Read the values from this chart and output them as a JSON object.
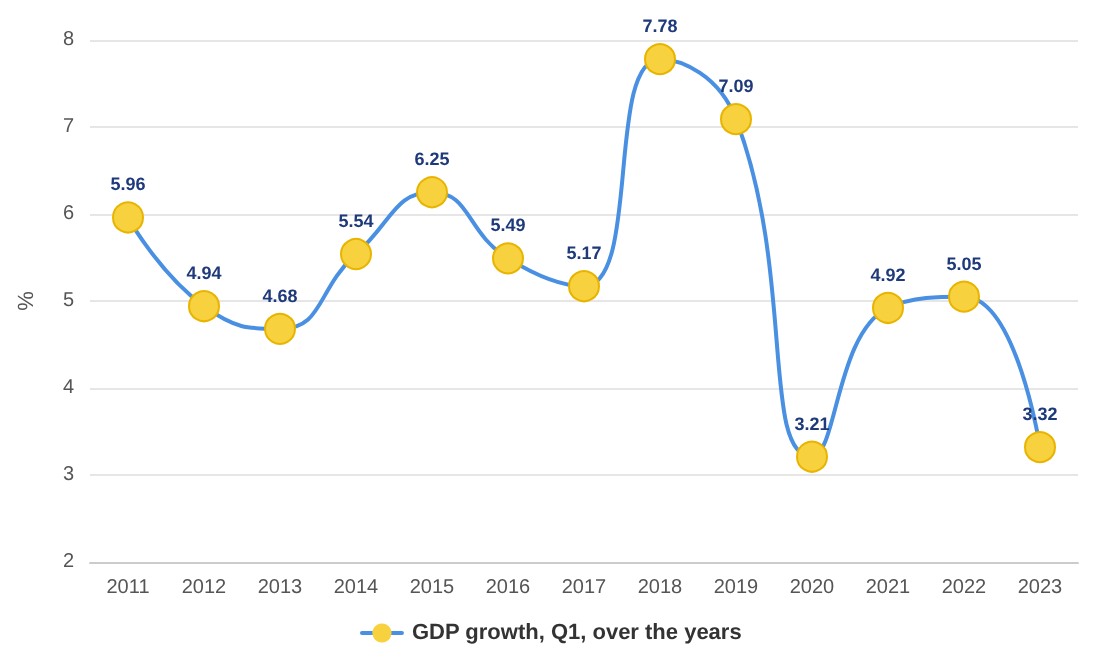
{
  "chart_data": {
    "type": "line",
    "ylabel": "%",
    "categories": [
      "2011",
      "2012",
      "2013",
      "2014",
      "2015",
      "2016",
      "2017",
      "2018",
      "2019",
      "2020",
      "2021",
      "2022",
      "2023"
    ],
    "series": [
      {
        "name": "GDP growth, Q1, over the years",
        "color": "#4a90e2",
        "colors": [
          "#f7d23e",
          "#f7d23e",
          "#f7d23e",
          "#f7d23e",
          "#f7d23e",
          "#f7d23e",
          "#f7d23e",
          "#f7d23e",
          "#f7d23e",
          "#f7d23e",
          "#f7d23e",
          "#f7d23e",
          "#f7d23e"
        ],
        "values": [
          5.96,
          4.94,
          4.68,
          5.54,
          6.25,
          5.49,
          5.17,
          7.78,
          7.09,
          3.21,
          4.92,
          5.05,
          3.32
        ]
      }
    ],
    "ylim": [
      2,
      8
    ],
    "yticks": [
      2,
      3,
      4,
      5,
      6,
      7,
      8
    ],
    "grid": "y",
    "legend": "bottom",
    "marker": "circle",
    "data_labels": true,
    "line_style": "solid"
  }
}
